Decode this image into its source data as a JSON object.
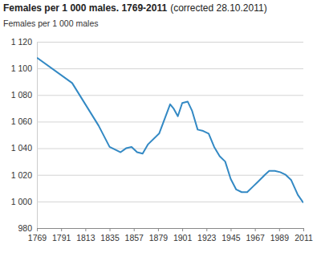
{
  "chart_data": {
    "type": "line",
    "title": "Females per 1 000 males. 1769-2011",
    "subtitle": "(corrected 28.10.2011)",
    "y_label": "Females per 1 000 males",
    "x": [
      1769,
      1801,
      1825,
      1835,
      1845,
      1850,
      1855,
      1860,
      1865,
      1870,
      1880,
      1885,
      1890,
      1893,
      1897,
      1901,
      1906,
      1910,
      1915,
      1920,
      1925,
      1930,
      1935,
      1940,
      1945,
      1950,
      1955,
      1960,
      1965,
      1970,
      1976,
      1980,
      1985,
      1990,
      1995,
      2000,
      2006,
      2011
    ],
    "values": [
      1108,
      1089,
      1057,
      1041,
      1037,
      1040,
      1041,
      1037,
      1036,
      1043,
      1051,
      1062,
      1073,
      1070,
      1064,
      1074,
      1075,
      1068,
      1054,
      1053,
      1051,
      1041,
      1034,
      1030,
      1017,
      1009,
      1007,
      1007,
      1011,
      1015,
      1020,
      1023,
      1023,
      1022,
      1020,
      1016,
      1005,
      999
    ],
    "color": "#3389c4",
    "xlim": [
      1769,
      2011
    ],
    "xticks": [
      1769,
      1791,
      1813,
      1835,
      1857,
      1879,
      1901,
      1923,
      1945,
      1967,
      1989,
      2011
    ],
    "ylim": [
      980,
      1120
    ],
    "yticks": [
      980,
      {
        "value": 1000,
        "label": "1 000"
      },
      {
        "value": 1020,
        "label": "1 020"
      },
      {
        "value": 1040,
        "label": "1 040"
      },
      {
        "value": 1060,
        "label": "1 060"
      },
      {
        "value": 1080,
        "label": "1 080"
      },
      {
        "value": 1100,
        "label": "1 100"
      },
      {
        "value": 1120,
        "label": "1 120"
      }
    ],
    "grid": true
  }
}
